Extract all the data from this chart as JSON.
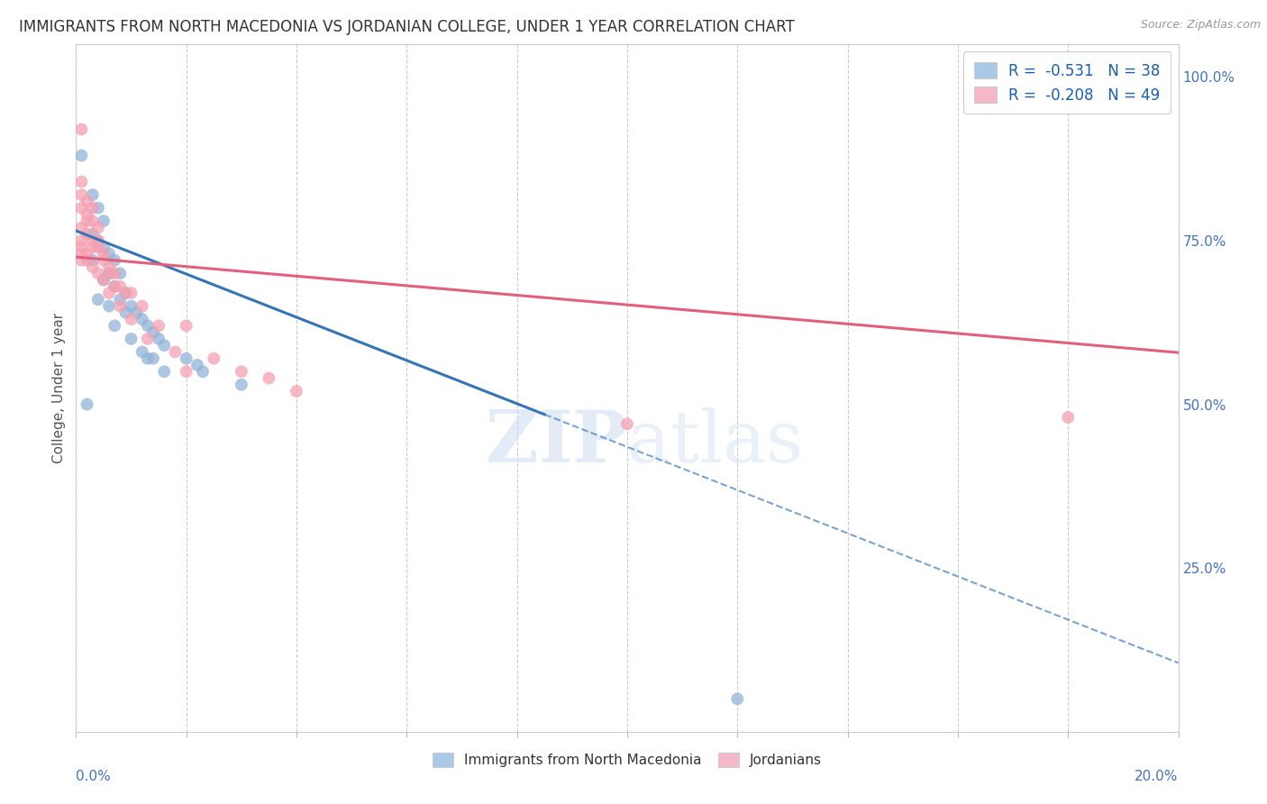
{
  "title": "IMMIGRANTS FROM NORTH MACEDONIA VS JORDANIAN COLLEGE, UNDER 1 YEAR CORRELATION CHART",
  "source": "Source: ZipAtlas.com",
  "ylabel": "College, Under 1 year",
  "legend_blue_label": "R =  -0.531   N = 38",
  "legend_pink_label": "R =  -0.208   N = 49",
  "legend_bottom_blue": "Immigrants from North Macedonia",
  "legend_bottom_pink": "Jordanians",
  "watermark": "ZIPatlas",
  "blue_color": "#92b4d7",
  "pink_color": "#f4a0b0",
  "blue_line_color": "#3575b5",
  "pink_line_color": "#e0607e",
  "blue_scatter": [
    [
      0.001,
      0.88
    ],
    [
      0.003,
      0.82
    ],
    [
      0.004,
      0.8
    ],
    [
      0.005,
      0.78
    ],
    [
      0.003,
      0.76
    ],
    [
      0.004,
      0.75
    ],
    [
      0.005,
      0.74
    ],
    [
      0.006,
      0.73
    ],
    [
      0.003,
      0.72
    ],
    [
      0.007,
      0.72
    ],
    [
      0.006,
      0.7
    ],
    [
      0.008,
      0.7
    ],
    [
      0.005,
      0.69
    ],
    [
      0.007,
      0.68
    ],
    [
      0.009,
      0.67
    ],
    [
      0.004,
      0.66
    ],
    [
      0.008,
      0.66
    ],
    [
      0.006,
      0.65
    ],
    [
      0.01,
      0.65
    ],
    [
      0.009,
      0.64
    ],
    [
      0.011,
      0.64
    ],
    [
      0.012,
      0.63
    ],
    [
      0.007,
      0.62
    ],
    [
      0.013,
      0.62
    ],
    [
      0.014,
      0.61
    ],
    [
      0.01,
      0.6
    ],
    [
      0.015,
      0.6
    ],
    [
      0.016,
      0.59
    ],
    [
      0.012,
      0.58
    ],
    [
      0.013,
      0.57
    ],
    [
      0.014,
      0.57
    ],
    [
      0.02,
      0.57
    ],
    [
      0.022,
      0.56
    ],
    [
      0.016,
      0.55
    ],
    [
      0.023,
      0.55
    ],
    [
      0.03,
      0.53
    ],
    [
      0.12,
      0.05
    ],
    [
      0.002,
      0.5
    ]
  ],
  "pink_scatter": [
    [
      0.001,
      0.92
    ],
    [
      0.001,
      0.84
    ],
    [
      0.001,
      0.82
    ],
    [
      0.002,
      0.81
    ],
    [
      0.001,
      0.8
    ],
    [
      0.003,
      0.8
    ],
    [
      0.002,
      0.79
    ],
    [
      0.002,
      0.78
    ],
    [
      0.003,
      0.78
    ],
    [
      0.001,
      0.77
    ],
    [
      0.004,
      0.77
    ],
    [
      0.002,
      0.76
    ],
    [
      0.001,
      0.75
    ],
    [
      0.003,
      0.75
    ],
    [
      0.004,
      0.75
    ],
    [
      0.001,
      0.74
    ],
    [
      0.003,
      0.74
    ],
    [
      0.004,
      0.74
    ],
    [
      0.001,
      0.73
    ],
    [
      0.002,
      0.73
    ],
    [
      0.005,
      0.73
    ],
    [
      0.001,
      0.72
    ],
    [
      0.002,
      0.72
    ],
    [
      0.005,
      0.72
    ],
    [
      0.003,
      0.71
    ],
    [
      0.006,
      0.71
    ],
    [
      0.004,
      0.7
    ],
    [
      0.006,
      0.7
    ],
    [
      0.007,
      0.7
    ],
    [
      0.005,
      0.69
    ],
    [
      0.007,
      0.68
    ],
    [
      0.008,
      0.68
    ],
    [
      0.006,
      0.67
    ],
    [
      0.009,
      0.67
    ],
    [
      0.01,
      0.67
    ],
    [
      0.008,
      0.65
    ],
    [
      0.012,
      0.65
    ],
    [
      0.01,
      0.63
    ],
    [
      0.015,
      0.62
    ],
    [
      0.02,
      0.62
    ],
    [
      0.013,
      0.6
    ],
    [
      0.018,
      0.58
    ],
    [
      0.025,
      0.57
    ],
    [
      0.02,
      0.55
    ],
    [
      0.03,
      0.55
    ],
    [
      0.035,
      0.54
    ],
    [
      0.04,
      0.52
    ],
    [
      0.18,
      0.48
    ],
    [
      0.1,
      0.47
    ]
  ],
  "xlim": [
    0.0,
    0.2
  ],
  "ylim": [
    0.0,
    1.05
  ],
  "blue_line_x_end_solid": 0.085,
  "blue_line_intercept": 0.765,
  "blue_line_slope": -3.3,
  "pink_line_intercept": 0.725,
  "pink_line_slope": -0.73
}
